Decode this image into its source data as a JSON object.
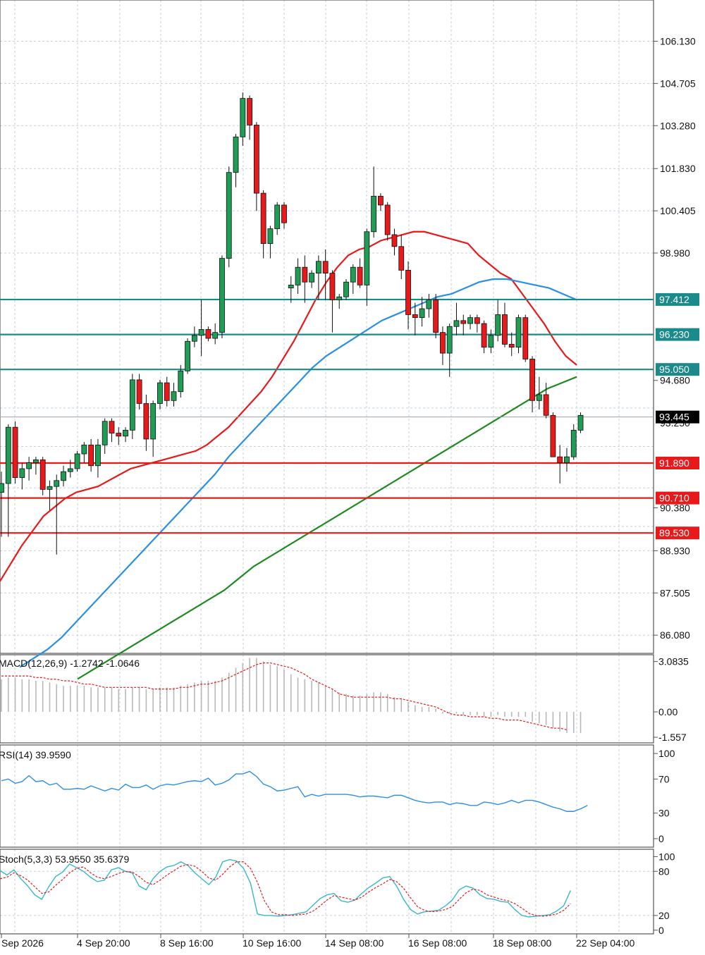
{
  "chart_data": [
    {
      "type": "candlestick",
      "panel": "price",
      "y_ticks": [
        "106.130",
        "104.705",
        "103.280",
        "101.830",
        "100.405",
        "98.980",
        "97.410",
        "96.230",
        "95.050",
        "94.680",
        "93.250",
        "91.890",
        "90.710",
        "90.380",
        "89.530",
        "88.930",
        "87.505",
        "86.080"
      ],
      "ylim": [
        85.3,
        107.6
      ],
      "x_labels": [
        "Sep 2026",
        "4 Sep 20:00",
        "8 Sep 16:00",
        "10 Sep 16:00",
        "14 Sep 08:00",
        "16 Sep 08:00",
        "18 Sep 08:00",
        "22 Sep 04:00"
      ],
      "current_price": "93.445",
      "levels": [
        {
          "value": 97.412,
          "label": "97.412",
          "color": "#1a8a8a"
        },
        {
          "value": 96.23,
          "label": "96.230",
          "color": "#1a8a8a"
        },
        {
          "value": 95.05,
          "label": "95.050",
          "color": "#1a8a8a"
        },
        {
          "value": 91.89,
          "label": "91.890",
          "color": "#e8191a"
        },
        {
          "value": 90.71,
          "label": "90.710",
          "color": "#e8191a"
        },
        {
          "value": 89.53,
          "label": "89.530",
          "color": "#e8191a"
        }
      ],
      "candles": [
        [
          90.9,
          91.6,
          89.4,
          91.2
        ],
        [
          91.2,
          93.2,
          89.4,
          93.1
        ],
        [
          93.1,
          93.3,
          91.2,
          91.4
        ],
        [
          91.4,
          91.9,
          91.0,
          91.7
        ],
        [
          91.7,
          92.1,
          91.3,
          91.9
        ],
        [
          91.9,
          92.1,
          91.5,
          92.0
        ],
        [
          92.0,
          92.1,
          90.8,
          91.0
        ],
        [
          91.0,
          91.3,
          90.3,
          91.1
        ],
        [
          91.1,
          91.5,
          88.8,
          91.3
        ],
        [
          91.3,
          91.8,
          91.1,
          91.6
        ],
        [
          91.6,
          92.0,
          91.4,
          91.7
        ],
        [
          91.7,
          92.3,
          91.6,
          92.2
        ],
        [
          92.2,
          92.6,
          91.9,
          92.5
        ],
        [
          92.5,
          92.7,
          91.6,
          91.8
        ],
        [
          91.8,
          92.7,
          91.4,
          92.5
        ],
        [
          92.5,
          93.4,
          92.2,
          93.3
        ],
        [
          93.3,
          93.4,
          92.6,
          92.9
        ],
        [
          92.9,
          93.1,
          92.5,
          92.8
        ],
        [
          92.8,
          93.1,
          92.6,
          93.0
        ],
        [
          93.0,
          94.9,
          92.7,
          94.7
        ],
        [
          94.7,
          94.9,
          93.7,
          93.9
        ],
        [
          93.9,
          94.2,
          92.3,
          92.7
        ],
        [
          92.7,
          94.0,
          92.1,
          93.9
        ],
        [
          93.9,
          94.7,
          93.7,
          94.6
        ],
        [
          94.6,
          94.8,
          93.8,
          94.0
        ],
        [
          94.0,
          94.6,
          93.8,
          94.3
        ],
        [
          94.3,
          95.2,
          94.1,
          95.0
        ],
        [
          95.0,
          96.1,
          94.9,
          96.0
        ],
        [
          96.0,
          96.5,
          95.8,
          96.2
        ],
        [
          96.2,
          97.4,
          95.5,
          96.4
        ],
        [
          96.4,
          96.5,
          96.0,
          96.1
        ],
        [
          96.1,
          96.6,
          95.9,
          96.3
        ],
        [
          96.3,
          98.9,
          96.1,
          98.8
        ],
        [
          98.8,
          101.9,
          98.5,
          101.7
        ],
        [
          101.7,
          103.0,
          101.2,
          102.9
        ],
        [
          102.9,
          104.4,
          102.6,
          104.2
        ],
        [
          104.2,
          104.3,
          102.8,
          103.3
        ],
        [
          103.3,
          103.4,
          100.4,
          101.0
        ],
        [
          101.0,
          101.1,
          98.8,
          99.3
        ],
        [
          99.3,
          99.9,
          98.8,
          99.8
        ],
        [
          99.8,
          100.7,
          99.6,
          100.6
        ],
        [
          100.6,
          100.7,
          99.8,
          100.0
        ],
        [
          97.8,
          98.2,
          97.3,
          97.9
        ],
        [
          97.9,
          98.8,
          97.6,
          98.5
        ],
        [
          98.5,
          98.9,
          97.3,
          98.0
        ],
        [
          98.0,
          98.4,
          97.8,
          98.3
        ],
        [
          98.3,
          98.9,
          97.4,
          98.7
        ],
        [
          98.7,
          99.1,
          97.4,
          98.3
        ],
        [
          98.3,
          98.4,
          96.3,
          97.4
        ],
        [
          97.4,
          97.6,
          97.1,
          97.5
        ],
        [
          97.5,
          98.1,
          97.4,
          98.0
        ],
        [
          98.0,
          98.6,
          97.6,
          98.5
        ],
        [
          98.5,
          98.8,
          97.8,
          97.9
        ],
        [
          97.9,
          99.8,
          97.2,
          99.7
        ],
        [
          99.7,
          101.9,
          99.5,
          100.9
        ],
        [
          100.9,
          101.0,
          100.4,
          100.6
        ],
        [
          100.6,
          100.7,
          99.4,
          99.6
        ],
        [
          99.6,
          99.8,
          98.9,
          99.2
        ],
        [
          99.2,
          99.6,
          98.1,
          98.4
        ],
        [
          98.4,
          98.7,
          96.4,
          96.9
        ],
        [
          96.9,
          97.3,
          96.2,
          96.8
        ],
        [
          96.8,
          97.5,
          96.5,
          97.1
        ],
        [
          97.1,
          97.6,
          96.8,
          97.4
        ],
        [
          97.4,
          97.6,
          96.1,
          96.3
        ],
        [
          96.3,
          96.5,
          95.2,
          95.6
        ],
        [
          95.6,
          96.6,
          94.8,
          96.5
        ],
        [
          96.5,
          97.3,
          96.2,
          96.7
        ],
        [
          96.7,
          96.9,
          96.2,
          96.6
        ],
        [
          96.6,
          96.9,
          96.4,
          96.8
        ],
        [
          96.8,
          96.9,
          96.3,
          96.6
        ],
        [
          96.6,
          96.7,
          95.6,
          95.8
        ],
        [
          95.8,
          96.4,
          95.6,
          96.2
        ],
        [
          96.2,
          97.4,
          96.0,
          96.9
        ],
        [
          96.9,
          97.3,
          95.8,
          95.9
        ],
        [
          95.9,
          96.3,
          95.5,
          95.8
        ],
        [
          95.8,
          96.9,
          95.6,
          96.8
        ],
        [
          96.8,
          96.9,
          95.3,
          95.4
        ],
        [
          95.4,
          95.5,
          93.6,
          94.0
        ],
        [
          94.0,
          94.8,
          93.7,
          94.2
        ],
        [
          94.2,
          94.6,
          93.4,
          93.5
        ],
        [
          93.5,
          93.6,
          92.3,
          92.1
        ],
        [
          92.1,
          92.5,
          91.2,
          91.9
        ],
        [
          91.9,
          92.4,
          91.6,
          92.1
        ],
        [
          92.1,
          93.2,
          92.0,
          93.0
        ],
        [
          93.0,
          93.6,
          92.9,
          93.5
        ]
      ],
      "series": [
        {
          "name": "",
          "color": "#e8191a",
          "values": [
            87.9,
            88.5,
            89.1,
            89.6,
            90.1,
            90.4,
            90.7,
            90.9,
            91.0,
            91.1,
            91.3,
            91.5,
            91.7,
            91.8,
            91.9,
            92.0,
            92.1,
            92.2,
            92.3,
            92.5,
            92.8,
            93.1,
            93.5,
            93.9,
            94.3,
            94.8,
            95.4,
            96.0,
            96.7,
            97.4,
            98.0,
            98.5,
            98.9,
            99.1,
            99.2,
            99.4,
            99.5,
            99.6,
            99.7,
            99.7,
            99.6,
            99.5,
            99.4,
            99.3,
            98.9,
            98.6,
            98.3,
            98.1,
            97.6,
            97.1,
            96.6,
            96.0,
            95.5,
            95.2
          ]
        },
        {
          "name": "",
          "color": "#2a8fe6",
          "values": [
            85.0,
            85.3,
            85.6,
            86.0,
            86.5,
            87.0,
            87.5,
            88.0,
            88.5,
            89.0,
            89.5,
            90.0,
            90.5,
            91.0,
            91.5,
            92.1,
            92.6,
            93.1,
            93.6,
            94.1,
            94.6,
            95.1,
            95.5,
            95.8,
            96.1,
            96.4,
            96.7,
            96.9,
            97.1,
            97.3,
            97.5,
            97.6,
            97.8,
            98.0,
            98.1,
            98.1,
            98.0,
            97.9,
            97.8,
            97.6,
            97.4
          ]
        },
        {
          "name": "",
          "color": "#1f8a1f",
          "values": [
            84.6,
            84.9,
            85.2,
            85.5,
            85.8,
            86.1,
            86.4,
            86.7,
            87.0,
            87.3,
            87.6,
            88.0,
            88.4,
            88.7,
            89.0,
            89.3,
            89.6,
            89.9,
            90.2,
            90.5,
            90.8,
            91.1,
            91.4,
            91.7,
            92.0,
            92.3,
            92.6,
            92.9,
            93.2,
            93.5,
            93.8,
            94.1,
            94.4,
            94.6,
            94.8
          ]
        }
      ]
    },
    {
      "type": "bar",
      "panel": "macd",
      "title": "MACD(12,26,9) -1.2742 -1.0646",
      "y_ticks": [
        "3.0835",
        "0.00",
        "-1.557"
      ],
      "ylim": [
        -1.9,
        3.5
      ],
      "values": [
        2.0,
        2.1,
        2.1,
        2.0,
        2.0,
        1.9,
        1.9,
        1.8,
        1.7,
        1.6,
        1.6,
        1.6,
        1.6,
        1.5,
        1.5,
        1.5,
        1.5,
        1.4,
        1.4,
        1.5,
        1.5,
        1.4,
        1.4,
        1.5,
        1.5,
        1.5,
        1.6,
        1.7,
        1.8,
        1.9,
        1.9,
        1.9,
        2.1,
        2.4,
        2.7,
        3.0,
        3.3,
        3.3,
        3.1,
        2.9,
        2.8,
        2.6,
        2.3,
        2.1,
        2.0,
        1.9,
        1.8,
        1.6,
        1.4,
        1.2,
        1.1,
        1.0,
        1.0,
        1.1,
        1.2,
        1.2,
        1.1,
        0.9,
        0.8,
        0.6,
        0.4,
        0.3,
        0.3,
        0.2,
        -0.1,
        -0.1,
        -0.1,
        -0.2,
        -0.2,
        -0.2,
        -0.3,
        -0.3,
        -0.2,
        -0.3,
        -0.3,
        -0.3,
        -0.3,
        -0.6,
        -0.7,
        -0.8,
        -1.0,
        -1.2,
        -1.3,
        -1.3,
        -1.3
      ],
      "signal": [
        2.2,
        2.2,
        2.2,
        2.2,
        2.2,
        2.1,
        2.1,
        2.0,
        2.0,
        1.9,
        1.9,
        1.8,
        1.7,
        1.7,
        1.6,
        1.5,
        1.5,
        1.5,
        1.5,
        1.5,
        1.5,
        1.5,
        1.4,
        1.4,
        1.4,
        1.4,
        1.5,
        1.5,
        1.6,
        1.7,
        1.7,
        1.8,
        1.9,
        2.1,
        2.3,
        2.5,
        2.7,
        2.9,
        3.0,
        3.0,
        2.9,
        2.8,
        2.7,
        2.5,
        2.3,
        2.0,
        1.8,
        1.6,
        1.4,
        1.1,
        1.0,
        0.9,
        0.9,
        0.9,
        0.9,
        0.9,
        0.9,
        0.8,
        0.8,
        0.7,
        0.6,
        0.5,
        0.4,
        0.3,
        0.1,
        -0.1,
        -0.2,
        -0.2,
        -0.3,
        -0.3,
        -0.3,
        -0.4,
        -0.4,
        -0.5,
        -0.5,
        -0.5,
        -0.6,
        -0.7,
        -0.8,
        -0.9,
        -1.0,
        -1.0,
        -1.1
      ]
    },
    {
      "type": "line",
      "panel": "rsi",
      "title": "RSI(14) 39.9590",
      "y_ticks": [
        "100",
        "70",
        "30",
        "0"
      ],
      "ylim": [
        -10,
        110
      ],
      "values": [
        68,
        70,
        65,
        67,
        74,
        67,
        68,
        63,
        65,
        58,
        58,
        59,
        58,
        62,
        59,
        56,
        59,
        57,
        64,
        60,
        60,
        63,
        58,
        62,
        64,
        63,
        65,
        67,
        68,
        67,
        71,
        63,
        65,
        69,
        76,
        76,
        79,
        73,
        64,
        61,
        56,
        57,
        59,
        61,
        49,
        52,
        50,
        52,
        52,
        52,
        52,
        51,
        49,
        50,
        50,
        49,
        48,
        51,
        51,
        48,
        45,
        43,
        42,
        43,
        43,
        40,
        42,
        41,
        39,
        39,
        43,
        42,
        40,
        42,
        45,
        42,
        45,
        45,
        43,
        40,
        37,
        35,
        32,
        32,
        35,
        39
      ]
    },
    {
      "type": "line",
      "panel": "stoch",
      "title": "Stoch(5,3,3) 53.9550 35.6379",
      "y_ticks": [
        "100",
        "80",
        "20",
        "0"
      ],
      "ylim": [
        -5,
        110
      ],
      "k": [
        81,
        75,
        82,
        70,
        60,
        48,
        42,
        59,
        73,
        79,
        90,
        85,
        80,
        72,
        66,
        68,
        82,
        85,
        80,
        78,
        60,
        55,
        70,
        80,
        86,
        88,
        93,
        88,
        78,
        70,
        62,
        72,
        93,
        96,
        94,
        84,
        64,
        22,
        20,
        20,
        19,
        20,
        21,
        23,
        25,
        34,
        43,
        48,
        50,
        40,
        38,
        41,
        50,
        58,
        64,
        71,
        73,
        60,
        42,
        28,
        22,
        25,
        26,
        27,
        33,
        41,
        55,
        60,
        57,
        48,
        43,
        42,
        39,
        38,
        28,
        20,
        18,
        19,
        20,
        21,
        26,
        33,
        54
      ],
      "d": [
        70,
        72,
        78,
        74,
        68,
        59,
        50,
        52,
        61,
        69,
        78,
        84,
        86,
        78,
        72,
        70,
        73,
        77,
        80,
        79,
        73,
        65,
        62,
        68,
        75,
        81,
        87,
        89,
        87,
        80,
        71,
        68,
        76,
        86,
        93,
        93,
        84,
        65,
        40,
        25,
        21,
        21,
        20,
        21,
        22,
        26,
        33,
        41,
        47,
        45,
        43,
        41,
        45,
        52,
        58,
        63,
        69,
        66,
        57,
        44,
        32,
        27,
        25,
        26,
        28,
        32,
        42,
        51,
        56,
        54,
        48,
        45,
        42,
        40,
        36,
        30,
        23,
        20,
        19,
        20,
        22,
        27,
        36
      ]
    }
  ]
}
